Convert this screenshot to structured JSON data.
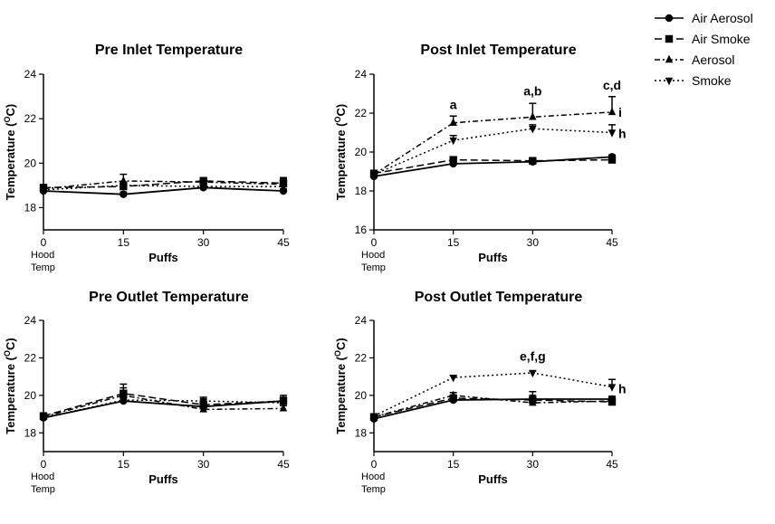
{
  "legend": [
    {
      "name": "Air Aerosol",
      "marker": "circle",
      "dash": "solid"
    },
    {
      "name": "Air Smoke",
      "marker": "square",
      "dash": "long-dash"
    },
    {
      "name": "Aerosol",
      "marker": "triangle-up",
      "dash": "dash-dot"
    },
    {
      "name": "Smoke",
      "marker": "triangle-down",
      "dash": "dotted"
    }
  ],
  "colors": {
    "line": "#000000",
    "background": "#ffffff"
  },
  "chart_data": [
    {
      "type": "line",
      "title": "Pre Inlet Temperature",
      "xlabel": "Puffs",
      "ylabel": "Temperature (°C)",
      "ylabel_main": "Temperature (",
      "ylabel_sup": "O",
      "ylabel_end": "C)",
      "x": [
        0,
        15,
        30,
        45
      ],
      "x_tick_labels": [
        "0",
        "15",
        "30",
        "45"
      ],
      "x0_sublabels": [
        "Hood",
        "Temp"
      ],
      "ylim": [
        17,
        24
      ],
      "yticks": [
        18,
        20,
        22,
        24
      ],
      "series": [
        {
          "name": "Air Aerosol",
          "values": [
            18.75,
            18.6,
            18.9,
            18.75
          ],
          "errors": [
            0,
            0.1,
            0.1,
            0.1
          ]
        },
        {
          "name": "Air Smoke",
          "values": [
            18.9,
            18.95,
            19.2,
            19.1
          ],
          "errors": [
            0,
            0.2,
            0.15,
            0.2
          ]
        },
        {
          "name": "Aerosol",
          "values": [
            18.85,
            19.2,
            19.15,
            19.05
          ],
          "errors": [
            0,
            0.3,
            0.15,
            0.3
          ]
        },
        {
          "name": "Smoke",
          "values": [
            18.8,
            19.0,
            18.95,
            18.95
          ],
          "errors": [
            0,
            0.15,
            0.1,
            0.15
          ]
        }
      ],
      "annotations": []
    },
    {
      "type": "line",
      "title": "Post Inlet Temperature",
      "xlabel": "Puffs",
      "ylabel": "Temperature (°C)",
      "ylabel_main": "Temperature (",
      "ylabel_sup": "O",
      "ylabel_end": "C)",
      "x": [
        0,
        15,
        30,
        45
      ],
      "x_tick_labels": [
        "0",
        "15",
        "30",
        "45"
      ],
      "x0_sublabels": [
        "Hood",
        "Temp"
      ],
      "ylim": [
        16,
        24
      ],
      "yticks": [
        16,
        18,
        20,
        22,
        24
      ],
      "series": [
        {
          "name": "Air Aerosol",
          "values": [
            18.75,
            19.4,
            19.5,
            19.75
          ],
          "errors": [
            0,
            0.1,
            0.1,
            0.1
          ]
        },
        {
          "name": "Air Smoke",
          "values": [
            18.9,
            19.6,
            19.55,
            19.6
          ],
          "errors": [
            0,
            0.15,
            0.1,
            0.15
          ]
        },
        {
          "name": "Aerosol",
          "values": [
            18.85,
            21.5,
            21.8,
            22.05
          ],
          "errors": [
            0,
            0.35,
            0.7,
            0.8
          ]
        },
        {
          "name": "Smoke",
          "values": [
            18.85,
            20.6,
            21.2,
            21.0
          ],
          "errors": [
            0,
            0.25,
            0.2,
            0.4
          ]
        }
      ],
      "annotations": [
        {
          "text": "a",
          "x": 15,
          "y": 22.2
        },
        {
          "text": "a,b",
          "x": 30,
          "y": 22.9
        },
        {
          "text": "c,d",
          "x": 45,
          "y": 23.2
        },
        {
          "text": "i",
          "x": 45,
          "y": 22.05,
          "side": "right"
        },
        {
          "text": "h",
          "x": 45,
          "y": 20.95,
          "side": "right"
        }
      ]
    },
    {
      "type": "line",
      "title": "Pre Outlet Temperature",
      "xlabel": "Puffs",
      "ylabel": "Temperature (°C)",
      "ylabel_main": "Temperature (",
      "ylabel_sup": "O",
      "ylabel_end": "C)",
      "x": [
        0,
        15,
        30,
        45
      ],
      "x_tick_labels": [
        "0",
        "15",
        "30",
        "45"
      ],
      "x0_sublabels": [
        "Hood",
        "Temp"
      ],
      "ylim": [
        17,
        24
      ],
      "yticks": [
        18,
        20,
        22,
        24
      ],
      "series": [
        {
          "name": "Air Aerosol",
          "values": [
            18.8,
            19.7,
            19.4,
            19.7
          ],
          "errors": [
            0,
            0.15,
            0.15,
            0.2
          ]
        },
        {
          "name": "Air Smoke",
          "values": [
            18.9,
            20.1,
            19.5,
            19.7
          ],
          "errors": [
            0,
            0.3,
            0.25,
            0.3
          ]
        },
        {
          "name": "Aerosol",
          "values": [
            18.85,
            20.0,
            19.25,
            19.3
          ],
          "errors": [
            0,
            0.6,
            0.15,
            0.15
          ]
        },
        {
          "name": "Smoke",
          "values": [
            18.8,
            19.75,
            19.7,
            19.6
          ],
          "errors": [
            0,
            0.2,
            0.2,
            0.2
          ]
        }
      ],
      "annotations": []
    },
    {
      "type": "line",
      "title": "Post Outlet Temperature",
      "xlabel": "Puffs",
      "ylabel": "Temperature (°C)",
      "ylabel_main": "Temperature (",
      "ylabel_sup": "O",
      "ylabel_end": "C)",
      "x": [
        0,
        15,
        30,
        45
      ],
      "x_tick_labels": [
        "0",
        "15",
        "30",
        "45"
      ],
      "x0_sublabels": [
        "Hood",
        "Temp"
      ],
      "ylim": [
        17,
        24
      ],
      "yticks": [
        18,
        20,
        22,
        24
      ],
      "series": [
        {
          "name": "Air Aerosol",
          "values": [
            18.75,
            19.75,
            19.8,
            19.8
          ],
          "errors": [
            0,
            0.1,
            0.2,
            0.15
          ]
        },
        {
          "name": "Air Smoke",
          "values": [
            18.85,
            19.85,
            19.75,
            19.65
          ],
          "errors": [
            0,
            0.15,
            0.45,
            0.2
          ]
        },
        {
          "name": "Aerosol",
          "values": [
            18.85,
            20.0,
            19.6,
            19.7
          ],
          "errors": [
            0,
            0.15,
            0.2,
            0.2
          ]
        },
        {
          "name": "Smoke",
          "values": [
            18.9,
            20.95,
            21.2,
            20.45
          ],
          "errors": [
            0,
            0.1,
            0.1,
            0.4
          ]
        }
      ],
      "annotations": [
        {
          "text": "e,f,g",
          "x": 30,
          "y": 21.85
        },
        {
          "text": "h",
          "x": 45,
          "y": 20.35,
          "side": "right"
        }
      ]
    }
  ]
}
